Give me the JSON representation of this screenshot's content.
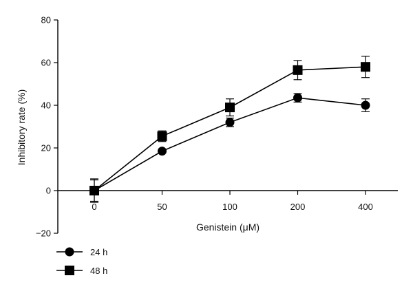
{
  "chart_data": {
    "type": "line",
    "title": "",
    "xlabel": "Genistein (μM)",
    "ylabel": "Inhibitory rate (%)",
    "categories": [
      "0",
      "50",
      "100",
      "200",
      "400"
    ],
    "ylim": [
      -20,
      80
    ],
    "yticks": [
      -20,
      0,
      20,
      40,
      60,
      80
    ],
    "grid": false,
    "legend_position": "bottom-left",
    "error_bars": true,
    "series": [
      {
        "name": "24 h",
        "marker": "circle",
        "color": "#000000",
        "values": [
          0,
          18.5,
          32,
          43.5,
          40
        ],
        "errors": [
          5,
          0.8,
          2,
          2,
          3
        ]
      },
      {
        "name": "48 h",
        "marker": "square",
        "color": "#000000",
        "values": [
          0,
          25.5,
          39,
          56.5,
          58
        ],
        "errors": [
          5.5,
          2.5,
          4,
          4.5,
          5
        ]
      }
    ]
  }
}
